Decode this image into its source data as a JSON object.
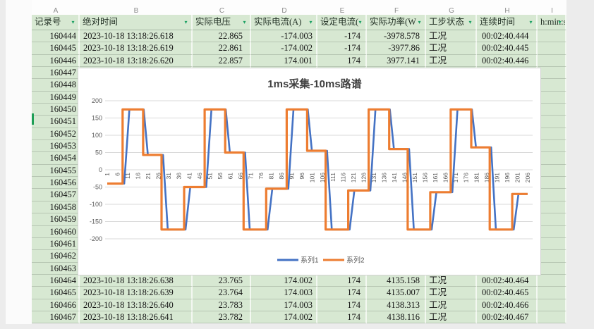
{
  "sheet": {
    "column_letters": [
      "A",
      "B",
      "C",
      "D",
      "E",
      "F",
      "G",
      "H",
      "I"
    ],
    "columns": [
      {
        "key": "record",
        "label": "记录号",
        "width": 68,
        "align": "ar",
        "pad": 3
      },
      {
        "key": "abs_time",
        "label": "绝对时间",
        "width": 160,
        "align": "al",
        "pad": 5
      },
      {
        "key": "voltage",
        "label": "实际电压",
        "width": 83,
        "align": "ar",
        "pad": 10
      },
      {
        "key": "current",
        "label": "实际电流(A)",
        "width": 94,
        "align": "ar",
        "pad": 5
      },
      {
        "key": "set_current",
        "label": "设定电流(",
        "width": 70,
        "align": "ar",
        "pad": 7
      },
      {
        "key": "power",
        "label": "实际功率(W",
        "width": 84,
        "align": "ar",
        "pad": 7
      },
      {
        "key": "step_state",
        "label": "工步状态",
        "width": 72,
        "align": "al",
        "pad": 4
      },
      {
        "key": "duration",
        "label": "连续时间",
        "width": 86,
        "align": "al",
        "pad": 7
      },
      {
        "key": "duration_unit",
        "label": "h:min:s.m",
        "width": 41,
        "align": "al",
        "pad": 1
      }
    ],
    "top_rows": [
      [
        "160444",
        "2023-10-18 13:18:26.618",
        "22.865",
        "-174.003",
        "-174",
        "-3978.578",
        "工况",
        "00:02:40.444",
        ""
      ],
      [
        "160445",
        "2023-10-18 13:18:26.619",
        "22.861",
        "-174.002",
        "-174",
        "-3977.86",
        "工况",
        "00:02:40.445",
        ""
      ],
      [
        "160446",
        "2023-10-18 13:18:26.620",
        "22.857",
        "174.001",
        "174",
        "3977.141",
        "工况",
        "00:02:40.446",
        ""
      ]
    ],
    "covered_rows_record_ids": [
      "160447",
      "160448",
      "160449",
      "160450",
      "160451",
      "160452",
      "160453",
      "160454",
      "160455",
      "160456",
      "160457",
      "160458",
      "160459",
      "160460",
      "160461",
      "160462",
      "160463"
    ],
    "bottom_rows": [
      [
        "160464",
        "2023-10-18 13:18:26.638",
        "23.765",
        "174.002",
        "174",
        "4135.158",
        "工况",
        "00:02:40.464",
        ""
      ],
      [
        "160465",
        "2023-10-18 13:18:26.639",
        "23.764",
        "174.003",
        "174",
        "4135.007",
        "工况",
        "00:02:40.465",
        ""
      ],
      [
        "160466",
        "2023-10-18 13:18:26.640",
        "23.783",
        "174.003",
        "174",
        "4138.313",
        "工况",
        "00:02:40.466",
        ""
      ],
      [
        "160467",
        "2023-10-18 13:18:26.641",
        "23.782",
        "174.002",
        "174",
        "4138.116",
        "工况",
        "00:02:40.467",
        ""
      ]
    ]
  },
  "chart_data": {
    "type": "line",
    "title": "1ms采集-10ms路谱",
    "xlabel": "",
    "ylabel": "",
    "xlim": [
      1,
      206
    ],
    "ylim": [
      -200,
      200
    ],
    "grid": true,
    "legend_position": "bottom",
    "y_ticks": [
      200,
      150,
      100,
      50,
      0,
      -50,
      -100,
      -150,
      -200
    ],
    "x_ticks": [
      1,
      6,
      11,
      16,
      21,
      26,
      31,
      36,
      41,
      46,
      51,
      56,
      61,
      66,
      71,
      76,
      81,
      86,
      91,
      96,
      101,
      106,
      111,
      116,
      121,
      126,
      131,
      136,
      141,
      146,
      151,
      156,
      161,
      166,
      171,
      176,
      181,
      186,
      191,
      196,
      201,
      206
    ],
    "series": [
      {
        "name": "系列1",
        "color": "#4472C4",
        "points": [
          [
            1,
            -40
          ],
          [
            9.3,
            -40
          ],
          [
            11.8,
            175
          ],
          [
            18.8,
            175
          ],
          [
            20.8,
            43
          ],
          [
            28.2,
            43
          ],
          [
            30.5,
            -173
          ],
          [
            39.2,
            -173
          ],
          [
            41.5,
            -50
          ],
          [
            49.3,
            -50
          ],
          [
            51.8,
            175
          ],
          [
            58.8,
            175
          ],
          [
            60.8,
            50
          ],
          [
            68.2,
            50
          ],
          [
            70.5,
            -173
          ],
          [
            79.2,
            -173
          ],
          [
            81.5,
            -55
          ],
          [
            89.3,
            -55
          ],
          [
            91.8,
            175
          ],
          [
            98.8,
            175
          ],
          [
            100.8,
            55
          ],
          [
            108.2,
            55
          ],
          [
            110.5,
            -173
          ],
          [
            119.2,
            -173
          ],
          [
            121.5,
            -60
          ],
          [
            129.3,
            -60
          ],
          [
            131.8,
            175
          ],
          [
            138.8,
            175
          ],
          [
            140.8,
            60
          ],
          [
            148.2,
            60
          ],
          [
            150.5,
            -173
          ],
          [
            159.2,
            -173
          ],
          [
            161.5,
            -65
          ],
          [
            169.3,
            -65
          ],
          [
            171.8,
            175
          ],
          [
            178.8,
            175
          ],
          [
            180.8,
            65
          ],
          [
            188.2,
            65
          ],
          [
            190.5,
            -173
          ],
          [
            199.2,
            -173
          ],
          [
            201.5,
            -70
          ],
          [
            206,
            -70
          ]
        ]
      },
      {
        "name": "系列2",
        "color": "#ED7D31",
        "points": [
          [
            1,
            -40
          ],
          [
            8.5,
            -40
          ],
          [
            8.5,
            175
          ],
          [
            18.5,
            175
          ],
          [
            18.5,
            43
          ],
          [
            27.5,
            43
          ],
          [
            27.5,
            -173
          ],
          [
            38.5,
            -173
          ],
          [
            38.5,
            -50
          ],
          [
            48.5,
            -50
          ],
          [
            48.5,
            175
          ],
          [
            58.5,
            175
          ],
          [
            58.5,
            50
          ],
          [
            67.5,
            50
          ],
          [
            67.5,
            -173
          ],
          [
            78.5,
            -173
          ],
          [
            78.5,
            -55
          ],
          [
            88.5,
            -55
          ],
          [
            88.5,
            175
          ],
          [
            98.5,
            175
          ],
          [
            98.5,
            55
          ],
          [
            107.5,
            55
          ],
          [
            107.5,
            -173
          ],
          [
            118.5,
            -173
          ],
          [
            118.5,
            -60
          ],
          [
            128.5,
            -60
          ],
          [
            128.5,
            175
          ],
          [
            138.5,
            175
          ],
          [
            138.5,
            60
          ],
          [
            147.5,
            60
          ],
          [
            147.5,
            -173
          ],
          [
            158.5,
            -173
          ],
          [
            158.5,
            -65
          ],
          [
            168.5,
            -65
          ],
          [
            168.5,
            175
          ],
          [
            178.5,
            175
          ],
          [
            178.5,
            65
          ],
          [
            187.5,
            65
          ],
          [
            187.5,
            -173
          ],
          [
            198.5,
            -173
          ],
          [
            198.5,
            -70
          ],
          [
            206,
            -70
          ]
        ]
      }
    ]
  },
  "colors": {
    "cell_bg": "#d7e8d2",
    "grid_line": "#d9d9d9",
    "axis_text": "#595959",
    "title_text": "#3f3f3f",
    "filter_arrow": "#21a366",
    "series1": "#4472C4",
    "series2": "#ED7D31",
    "active_bar": "#1e9e55"
  }
}
